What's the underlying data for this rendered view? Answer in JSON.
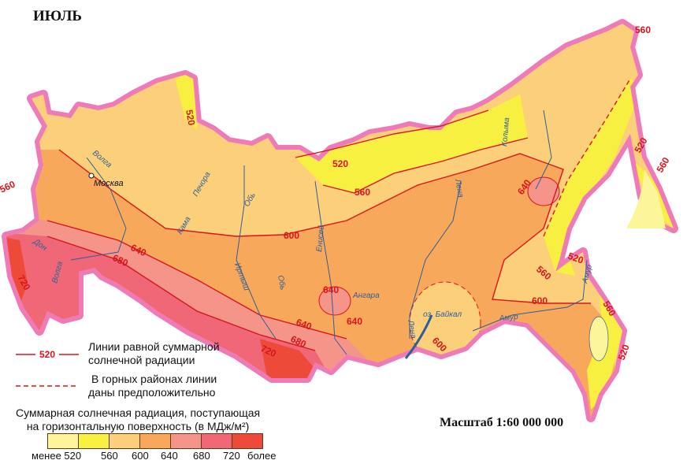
{
  "title": "ИЮЛЬ",
  "legend": {
    "solid_line_sample": "520",
    "solid_line_text": [
      "Линии равной суммарной",
      "солнечной радиации"
    ],
    "dashed_line_text": [
      "В горных районах линии",
      "даны предположительно"
    ],
    "scale_title": [
      "Суммарная солнечная радиация, поступающая",
      "на горизонтальную поверхность (в МДж/м²)"
    ],
    "classes": [
      {
        "label": "менее 520",
        "color": "#fdf59a"
      },
      {
        "label": "560",
        "color": "#f8f040"
      },
      {
        "label": "600",
        "color": "#fcd07a"
      },
      {
        "label": "640",
        "color": "#f8a85a"
      },
      {
        "label": "680",
        "color": "#f5958a"
      },
      {
        "label": "720",
        "color": "#f06878"
      },
      {
        "label": "более",
        "color": "#ee4a3a"
      }
    ]
  },
  "scale": "Масштаб 1:60 000 000",
  "colors": {
    "border": "#ee7ab8",
    "isoline": "#d8141c",
    "river": "#2f5f9a",
    "lake": "#bfe3f5"
  },
  "isoline_labels": [
    "520",
    "560",
    "520",
    "560",
    "600",
    "640",
    "680",
    "720",
    "640",
    "640",
    "680",
    "720",
    "640",
    "600",
    "560",
    "520",
    "600",
    "560",
    "520",
    "560",
    "520",
    "640",
    "560"
  ],
  "rivers": [
    "Волга",
    "Печора",
    "Кама",
    "Обь",
    "Обь",
    "Иртыш",
    "Енисей",
    "Ангара",
    "Лена",
    "Лена",
    "Колыма",
    "Амур",
    "Амур",
    "Дон",
    "Волга"
  ],
  "lake": "оз. Байкал",
  "city": "Москва"
}
